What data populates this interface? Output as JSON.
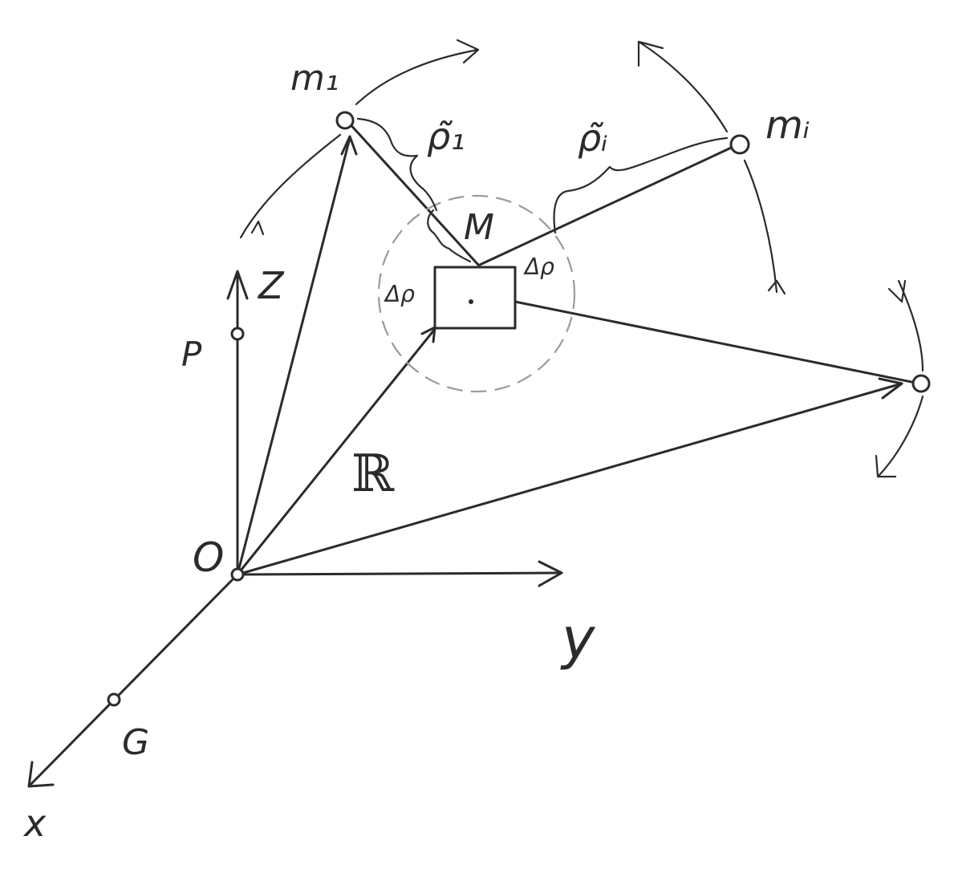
{
  "diagram": {
    "labels": {
      "z": "Z",
      "y": "y",
      "x": "x",
      "origin": "O",
      "p": "P",
      "g": "G",
      "r": "ℝ",
      "m": "M",
      "m1": "m₁",
      "mi": "mᵢ",
      "rho1": "ρ̃₁",
      "rhoi": "ρ̃ᵢ",
      "delta_left": "Δρ",
      "delta_right": "Δρ"
    }
  }
}
